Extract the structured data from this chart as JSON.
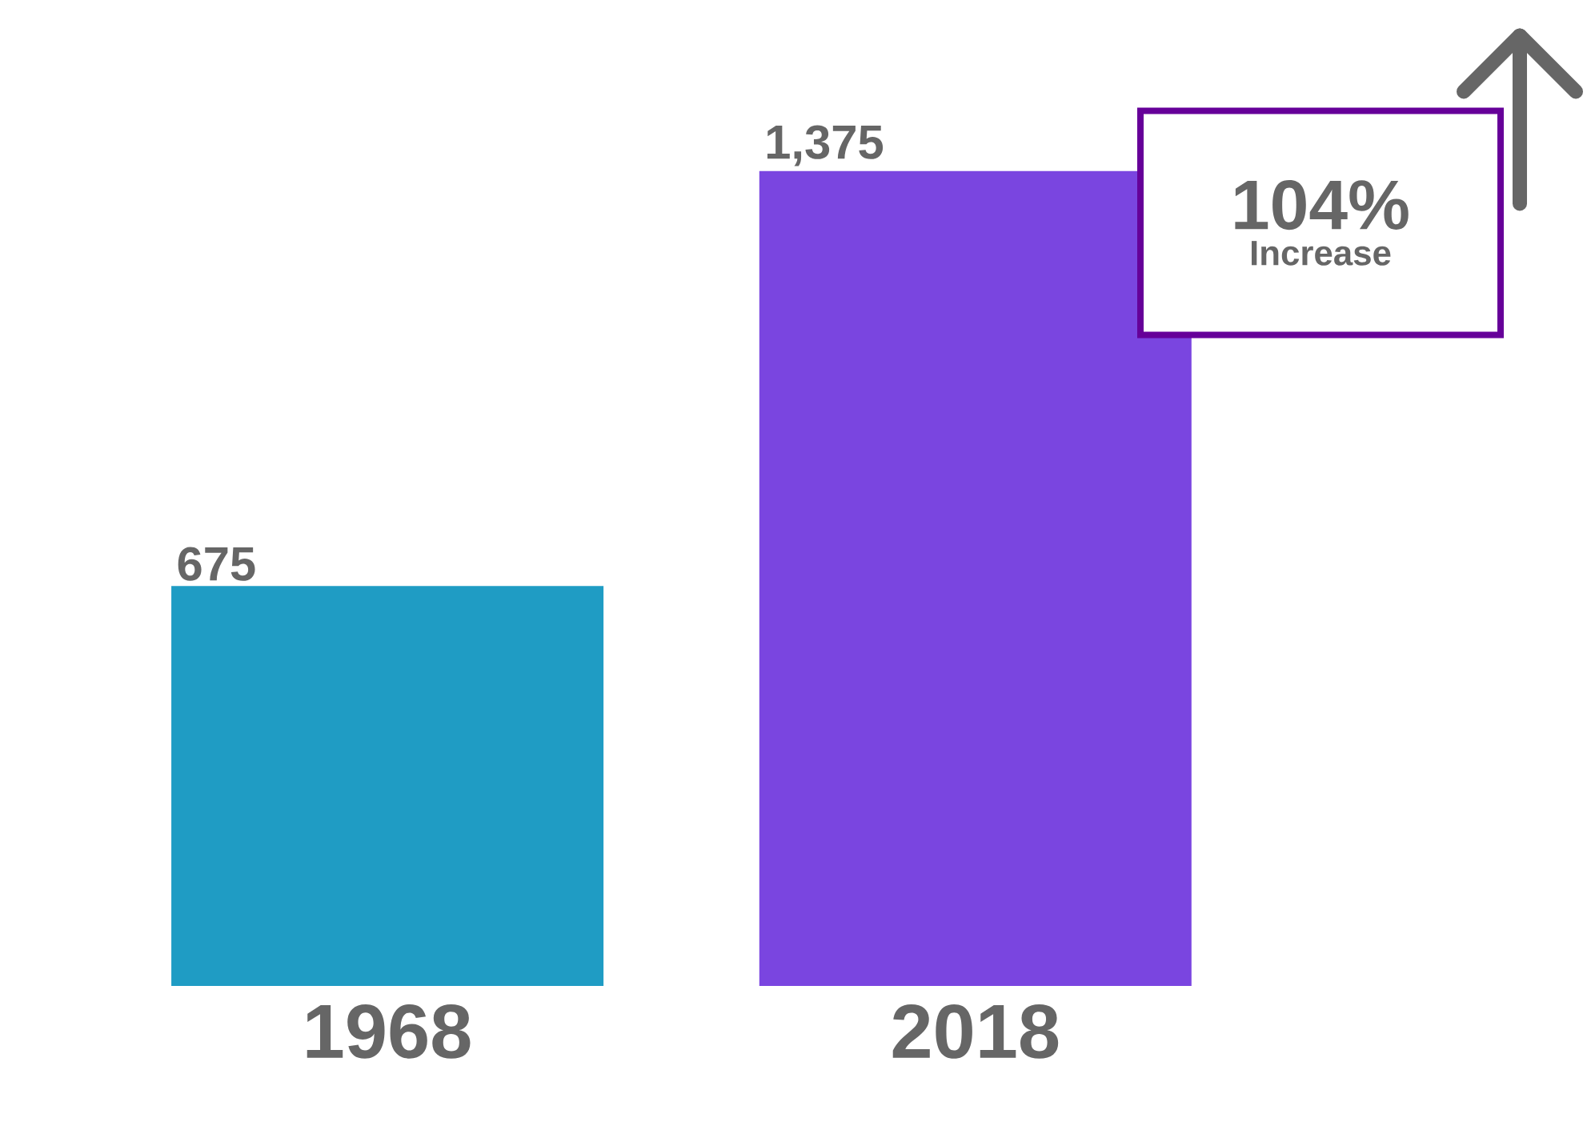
{
  "chart_data": {
    "type": "bar",
    "categories": [
      "1968",
      "2018"
    ],
    "values": [
      675,
      1375
    ],
    "colors": [
      "#1f9cc4",
      "#7a45e0"
    ],
    "value_labels": [
      "675",
      "1,375"
    ],
    "annotations": [
      "104%",
      "Increase"
    ]
  }
}
